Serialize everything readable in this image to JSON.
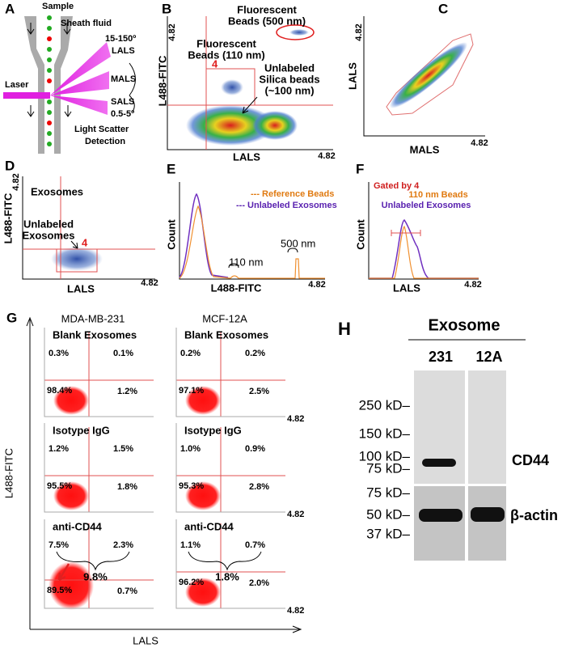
{
  "panels": {
    "A": {
      "label": "A",
      "sample": "Sample",
      "sheath": "Sheath fluid",
      "lals_angle": "15-150º",
      "lals": "LALS",
      "mals": "MALS",
      "laser": "Laser",
      "sals": "SALS",
      "sals_angle": "0.5-5º",
      "caption_1": "Light Scatter",
      "caption_2": "Detection"
    },
    "B": {
      "label": "B",
      "y_axis": "L488-FITC",
      "y_max": "4.82",
      "x_axis": "LALS",
      "x_max": "4.82",
      "beads500_1": "Fluorescent",
      "beads500_2": "Beads (500 nm)",
      "beads110_1": "Fluorescent",
      "beads110_2": "Beads (110 nm)",
      "gate": "4",
      "silica_1": "Unlabeled",
      "silica_2": "Silica beads",
      "silica_3": "(~100 nm)"
    },
    "C": {
      "label": "C",
      "y_axis": "LALS",
      "y_max": "4.82",
      "x_axis": "MALS",
      "x_max": "4.82"
    },
    "D": {
      "label": "D",
      "y_axis": "L488-FITC",
      "y_max": "4.82",
      "title": "Exosomes",
      "note_1": "Unlabeled",
      "note_2": "Exosomes",
      "gate": "4",
      "x_axis": "LALS",
      "x_max": "4.82"
    },
    "E": {
      "label": "E",
      "y_axis": "Count",
      "legend_1": "--- Reference Beads",
      "legend_2": "--- Unlabeled Exosomes",
      "peak_1": "110 nm",
      "peak_2": "500 nm",
      "x_axis": "L488-FITC",
      "x_max": "4.82"
    },
    "F": {
      "label": "F",
      "y_axis": "Count",
      "legend_1": "Gated by 4",
      "legend_2": "110 nm Beads",
      "legend_3": "Unlabeled Exosomes",
      "x_axis": "LALS",
      "x_max": "4.82"
    },
    "G": {
      "label": "G",
      "col_1": "MDA-MB-231",
      "col_2": "MCF-12A",
      "y_axis": "L488-FITC",
      "x_axis": "LALS",
      "x_max": "4.82",
      "plots": [
        {
          "title": "Blank Exosomes",
          "ul": "0.3%",
          "ur": "0.1%",
          "ll": "98.4%",
          "lr": "1.2%"
        },
        {
          "title": "Blank Exosomes",
          "ul": "0.2%",
          "ur": "0.2%",
          "ll": "97.1%",
          "lr": "2.5%"
        },
        {
          "title": "Isotype IgG",
          "ul": "1.2%",
          "ur": "1.5%",
          "ll": "95.5%",
          "lr": "1.8%"
        },
        {
          "title": "Isotype IgG",
          "ul": "1.0%",
          "ur": "0.9%",
          "ll": "95.3%",
          "lr": "2.8%"
        },
        {
          "title": "anti-CD44",
          "ul": "7.5%",
          "ur": "2.3%",
          "ll": "89.5%",
          "lr": "0.7%",
          "sum": "9.8%"
        },
        {
          "title": "anti-CD44",
          "ul": "1.1%",
          "ur": "0.7%",
          "ll": "96.2%",
          "lr": "2.0%",
          "sum": "1.8%"
        }
      ]
    },
    "H": {
      "label": "H",
      "title": "Exosome",
      "lane_1": "231",
      "lane_2": "12A",
      "markers_top": [
        "250 kD–",
        "150 kD–",
        "100 kD–",
        "75 kD–"
      ],
      "markers_bottom": [
        "75 kD–",
        "50 kD–",
        "37 kD–"
      ],
      "protein_1": "CD44",
      "protein_2": "β-actin"
    }
  }
}
